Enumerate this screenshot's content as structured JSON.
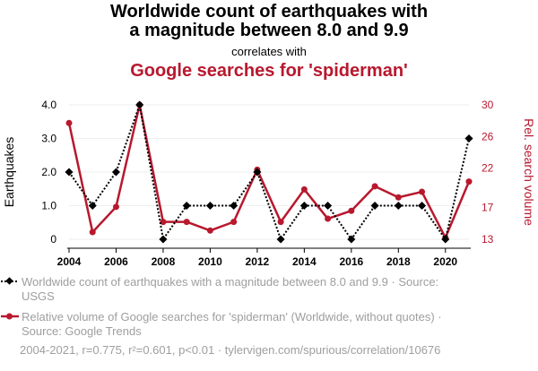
{
  "titles": {
    "line1": "Worldwide count of earthquakes with",
    "line2": "a magnitude between 8.0 and 9.9",
    "correlates": "correlates with",
    "line3": "Google searches for 'spiderman'"
  },
  "colors": {
    "series1": "#000000",
    "series2": "#b8182e",
    "muted": "#9e9e9e"
  },
  "chart_data": {
    "type": "line",
    "x": [
      2004,
      2005,
      2006,
      2007,
      2008,
      2009,
      2010,
      2011,
      2012,
      2013,
      2014,
      2015,
      2016,
      2017,
      2018,
      2019,
      2020,
      2021
    ],
    "xticks": [
      "2004",
      "2006",
      "2008",
      "2010",
      "2012",
      "2014",
      "2016",
      "2018",
      "2020"
    ],
    "xlim": [
      2004,
      2021
    ],
    "left_axis": {
      "label": "Earthquakes",
      "ylim": [
        0,
        4
      ],
      "ticks": [
        "0",
        "1.0",
        "2.0",
        "3.0",
        "4.0"
      ],
      "tick_values": [
        0,
        1,
        2,
        3,
        4
      ]
    },
    "right_axis": {
      "label": "Rel. search volume",
      "ylim": [
        13,
        30
      ],
      "ticks": [
        "13",
        "17",
        "22",
        "26",
        "30"
      ],
      "tick_values": [
        13,
        17,
        22,
        26,
        30
      ]
    },
    "series": [
      {
        "name": "Worldwide count of earthquakes with a magnitude between 8.0 and 9.9",
        "axis": "left",
        "style": "dotted",
        "marker": "diamond",
        "values": [
          2,
          1,
          2,
          4,
          0,
          1,
          1,
          1,
          2,
          0,
          1,
          1,
          0,
          1,
          1,
          1,
          0,
          3
        ]
      },
      {
        "name": "Relative volume of Google searches for 'spiderman' (Worldwide, without quotes)",
        "axis": "right",
        "style": "solid",
        "marker": "circle",
        "values": [
          27.7,
          13.9,
          17.1,
          30.0,
          15.2,
          15.2,
          14.1,
          15.2,
          21.8,
          15.2,
          19.3,
          15.6,
          16.6,
          19.7,
          18.3,
          19.0,
          13.2,
          20.3
        ]
      }
    ]
  },
  "legend": {
    "series1": "Worldwide count of earthquakes with a magnitude between 8.0 and 9.9 · Source: USGS",
    "series2": "Relative volume of Google searches for 'spiderman' (Worldwide, without quotes) · Source: Google Trends"
  },
  "footer": "2004-2021, r=0.775, r²=0.601, p<0.01 · tylervigen.com/spurious/correlation/10676"
}
